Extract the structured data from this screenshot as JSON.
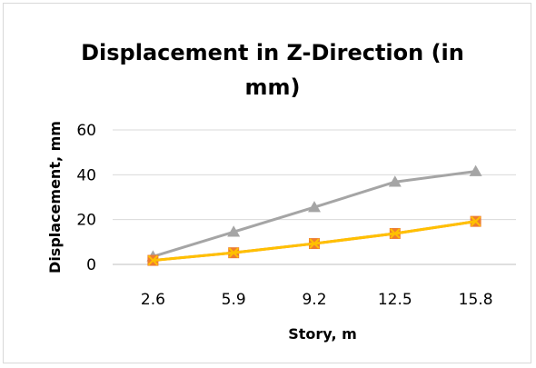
{
  "chart_data": {
    "type": "line",
    "title_lines": [
      "Displacement in Z-Direction (in",
      "mm)"
    ],
    "xlabel": "Story, m",
    "ylabel": "Displacement, mm",
    "categories": [
      "2.6",
      "5.9",
      "9.2",
      "12.5",
      "15.8"
    ],
    "ylim": [
      0,
      60
    ],
    "yticks": [
      "0",
      "20",
      "40",
      "60"
    ],
    "grid": true,
    "legend": "none",
    "series": [
      {
        "values": [
          3.5,
          14.5,
          25.5,
          36.8,
          41.5
        ],
        "color": "#a5a5a5",
        "marker": "triangle"
      },
      {
        "values": [
          1.8,
          5.2,
          9.3,
          13.8,
          19.2
        ],
        "color": "#ed7d31",
        "marker": "square"
      },
      {
        "values": [
          1.8,
          5.2,
          9.3,
          13.8,
          19.2
        ],
        "color": "#ffc000",
        "marker": "x"
      }
    ]
  }
}
